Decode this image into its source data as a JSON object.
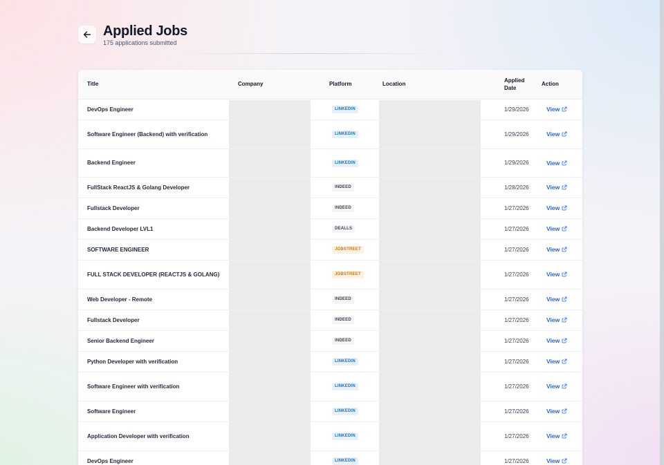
{
  "header": {
    "title": "Applied Jobs",
    "subtitle": "175 applications submitted",
    "back_icon": "arrow-left-icon"
  },
  "colors": {
    "linkedin": "#1d6fb8",
    "jobstreet": "#d97706",
    "link": "#2563eb",
    "shade": "#ebebeb"
  },
  "table": {
    "columns": {
      "title": "Title",
      "company": "Company",
      "platform": "Platform",
      "location": "Location",
      "applied_date_1": "Applied",
      "applied_date_2": "Date",
      "action": "Action"
    },
    "view_label": "View",
    "view_icon": "external-link-icon",
    "rows": [
      {
        "title": "DevOps Engineer",
        "platform": "LINKEDIN",
        "date": "1/29/2026"
      },
      {
        "title": "Software Engineer (Backend) with verification",
        "platform": "LINKEDIN",
        "date": "1/29/2026"
      },
      {
        "title": "Backend Engineer",
        "platform": "LINKEDIN",
        "date": "1/29/2026"
      },
      {
        "title": "FullStack ReactJS & Golang Developer",
        "platform": "INDEED",
        "date": "1/28/2026"
      },
      {
        "title": "Fullstack Developer",
        "platform": "INDEED",
        "date": "1/27/2026"
      },
      {
        "title": "Backend Developer LVL1",
        "platform": "DEALLS",
        "date": "1/27/2026"
      },
      {
        "title": "SOFTWARE ENGINEER",
        "platform": "JOBSTREET",
        "date": "1/27/2026"
      },
      {
        "title": "FULL STACK DEVELOPER (REACTJS & GOLANG)",
        "platform": "JOBSTREET",
        "date": "1/27/2026"
      },
      {
        "title": "Web Developer - Remote",
        "platform": "INDEED",
        "date": "1/27/2026"
      },
      {
        "title": "Fullstack Developer",
        "platform": "INDEED",
        "date": "1/27/2026"
      },
      {
        "title": "Senior Backend Engineer",
        "platform": "INDEED",
        "date": "1/27/2026"
      },
      {
        "title": "Python Developer with verification",
        "platform": "LINKEDIN",
        "date": "1/27/2026"
      },
      {
        "title": "Software Engineer with verification",
        "platform": "LINKEDIN",
        "date": "1/27/2026"
      },
      {
        "title": "Software Engineer",
        "platform": "LINKEDIN",
        "date": "1/27/2026"
      },
      {
        "title": "Application Developer with verification",
        "platform": "LINKEDIN",
        "date": "1/27/2026"
      },
      {
        "title": "DevOps Engineer",
        "platform": "LINKEDIN",
        "date": "1/27/2026"
      }
    ]
  }
}
